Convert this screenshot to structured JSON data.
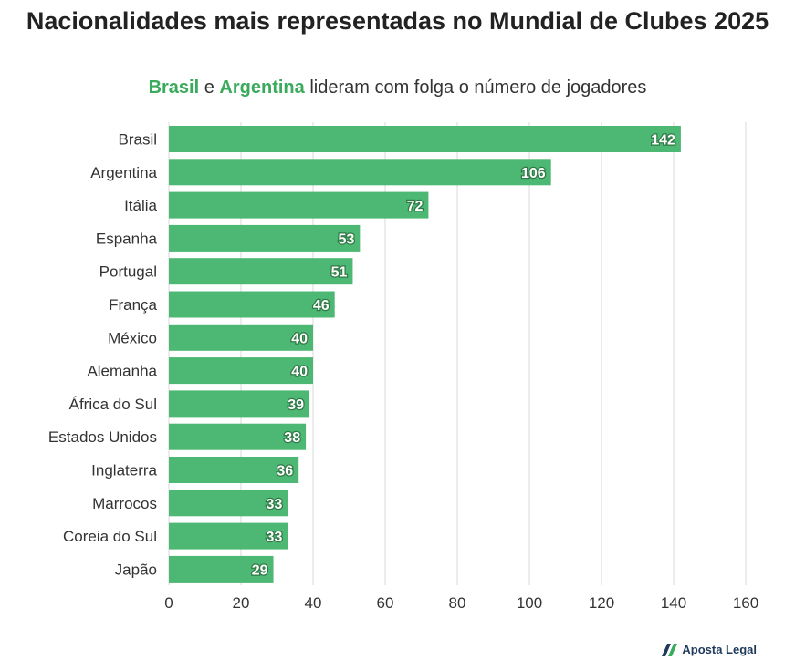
{
  "title": "Nacionalidades mais representadas no Mundial de Clubes 2025",
  "subtitle": {
    "hl1": "Brasil",
    "sep": " e ",
    "hl2": "Argentina",
    "rest": " lideram com folga o número de jogadores"
  },
  "colors": {
    "bar": "#4db873",
    "highlight": "#3aaa5c",
    "grid": "#e6e6e6"
  },
  "chart_data": {
    "type": "bar",
    "orientation": "horizontal",
    "categories": [
      "Brasil",
      "Argentina",
      "Itália",
      "Espanha",
      "Portugal",
      "França",
      "México",
      "Alemanha",
      "África do Sul",
      "Estados Unidos",
      "Inglaterra",
      "Marrocos",
      "Coreia do Sul",
      "Japão"
    ],
    "values": [
      142,
      106,
      72,
      53,
      51,
      46,
      40,
      40,
      39,
      38,
      36,
      33,
      33,
      29
    ],
    "xlim": [
      0,
      160
    ],
    "xticks": [
      0,
      20,
      40,
      60,
      80,
      100,
      120,
      140,
      160
    ],
    "grid": true,
    "data_labels": true
  },
  "logo": {
    "text": "Aposta Legal",
    "icon": "aposta-legal-logo-icon"
  }
}
